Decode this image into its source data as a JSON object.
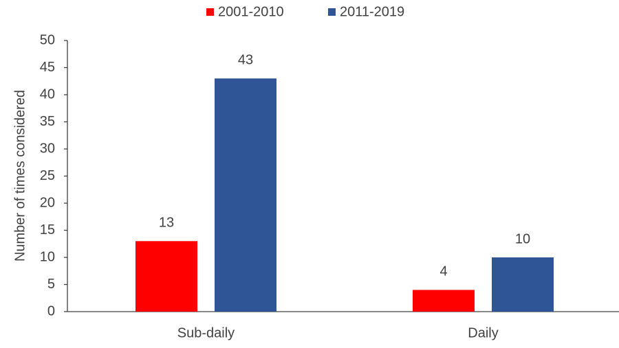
{
  "chart_data": {
    "type": "bar",
    "y_label": "Number  of times considered",
    "categories": [
      "Sub-daily",
      "Daily"
    ],
    "series": [
      {
        "name": "2001-2010",
        "color": "#ff0000",
        "values": [
          13,
          4
        ]
      },
      {
        "name": "2011-2019",
        "color": "#2f5597",
        "values": [
          43,
          10
        ]
      }
    ],
    "ylim": [
      0,
      50
    ],
    "yticks": [
      0,
      5,
      10,
      15,
      20,
      25,
      30,
      35,
      40,
      45,
      50
    ],
    "grid": false,
    "legend": "top"
  }
}
